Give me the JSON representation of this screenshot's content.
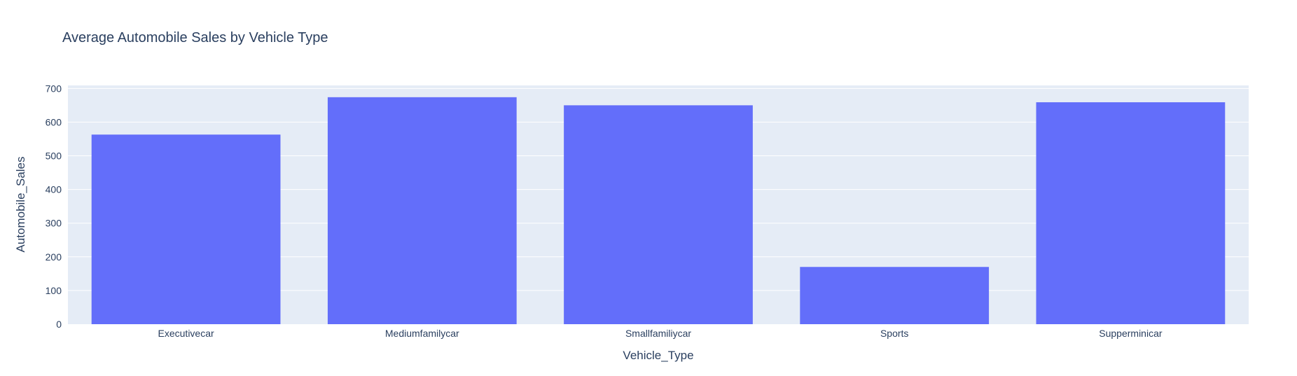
{
  "chart_data": {
    "type": "bar",
    "title": "Average Automobile Sales by Vehicle Type",
    "xlabel": "Vehicle_Type",
    "ylabel": "Automobile_Sales",
    "categories": [
      "Executivecar",
      "Mediumfamilycar",
      "Smallfamiliycar",
      "Sports",
      "Supperminicar"
    ],
    "values": [
      563,
      674,
      650,
      170,
      659
    ],
    "ylim": [
      0,
      709
    ],
    "yticks": [
      0,
      100,
      200,
      300,
      400,
      500,
      600,
      700
    ],
    "ytick_labels": [
      "0",
      "100",
      "200",
      "300",
      "400",
      "500",
      "600",
      "700"
    ],
    "grid": true,
    "colors": {
      "bar": "#636efa",
      "plot_bg": "#e5ecf6",
      "grid": "#ffffff",
      "text": "#2a3f5f"
    }
  }
}
